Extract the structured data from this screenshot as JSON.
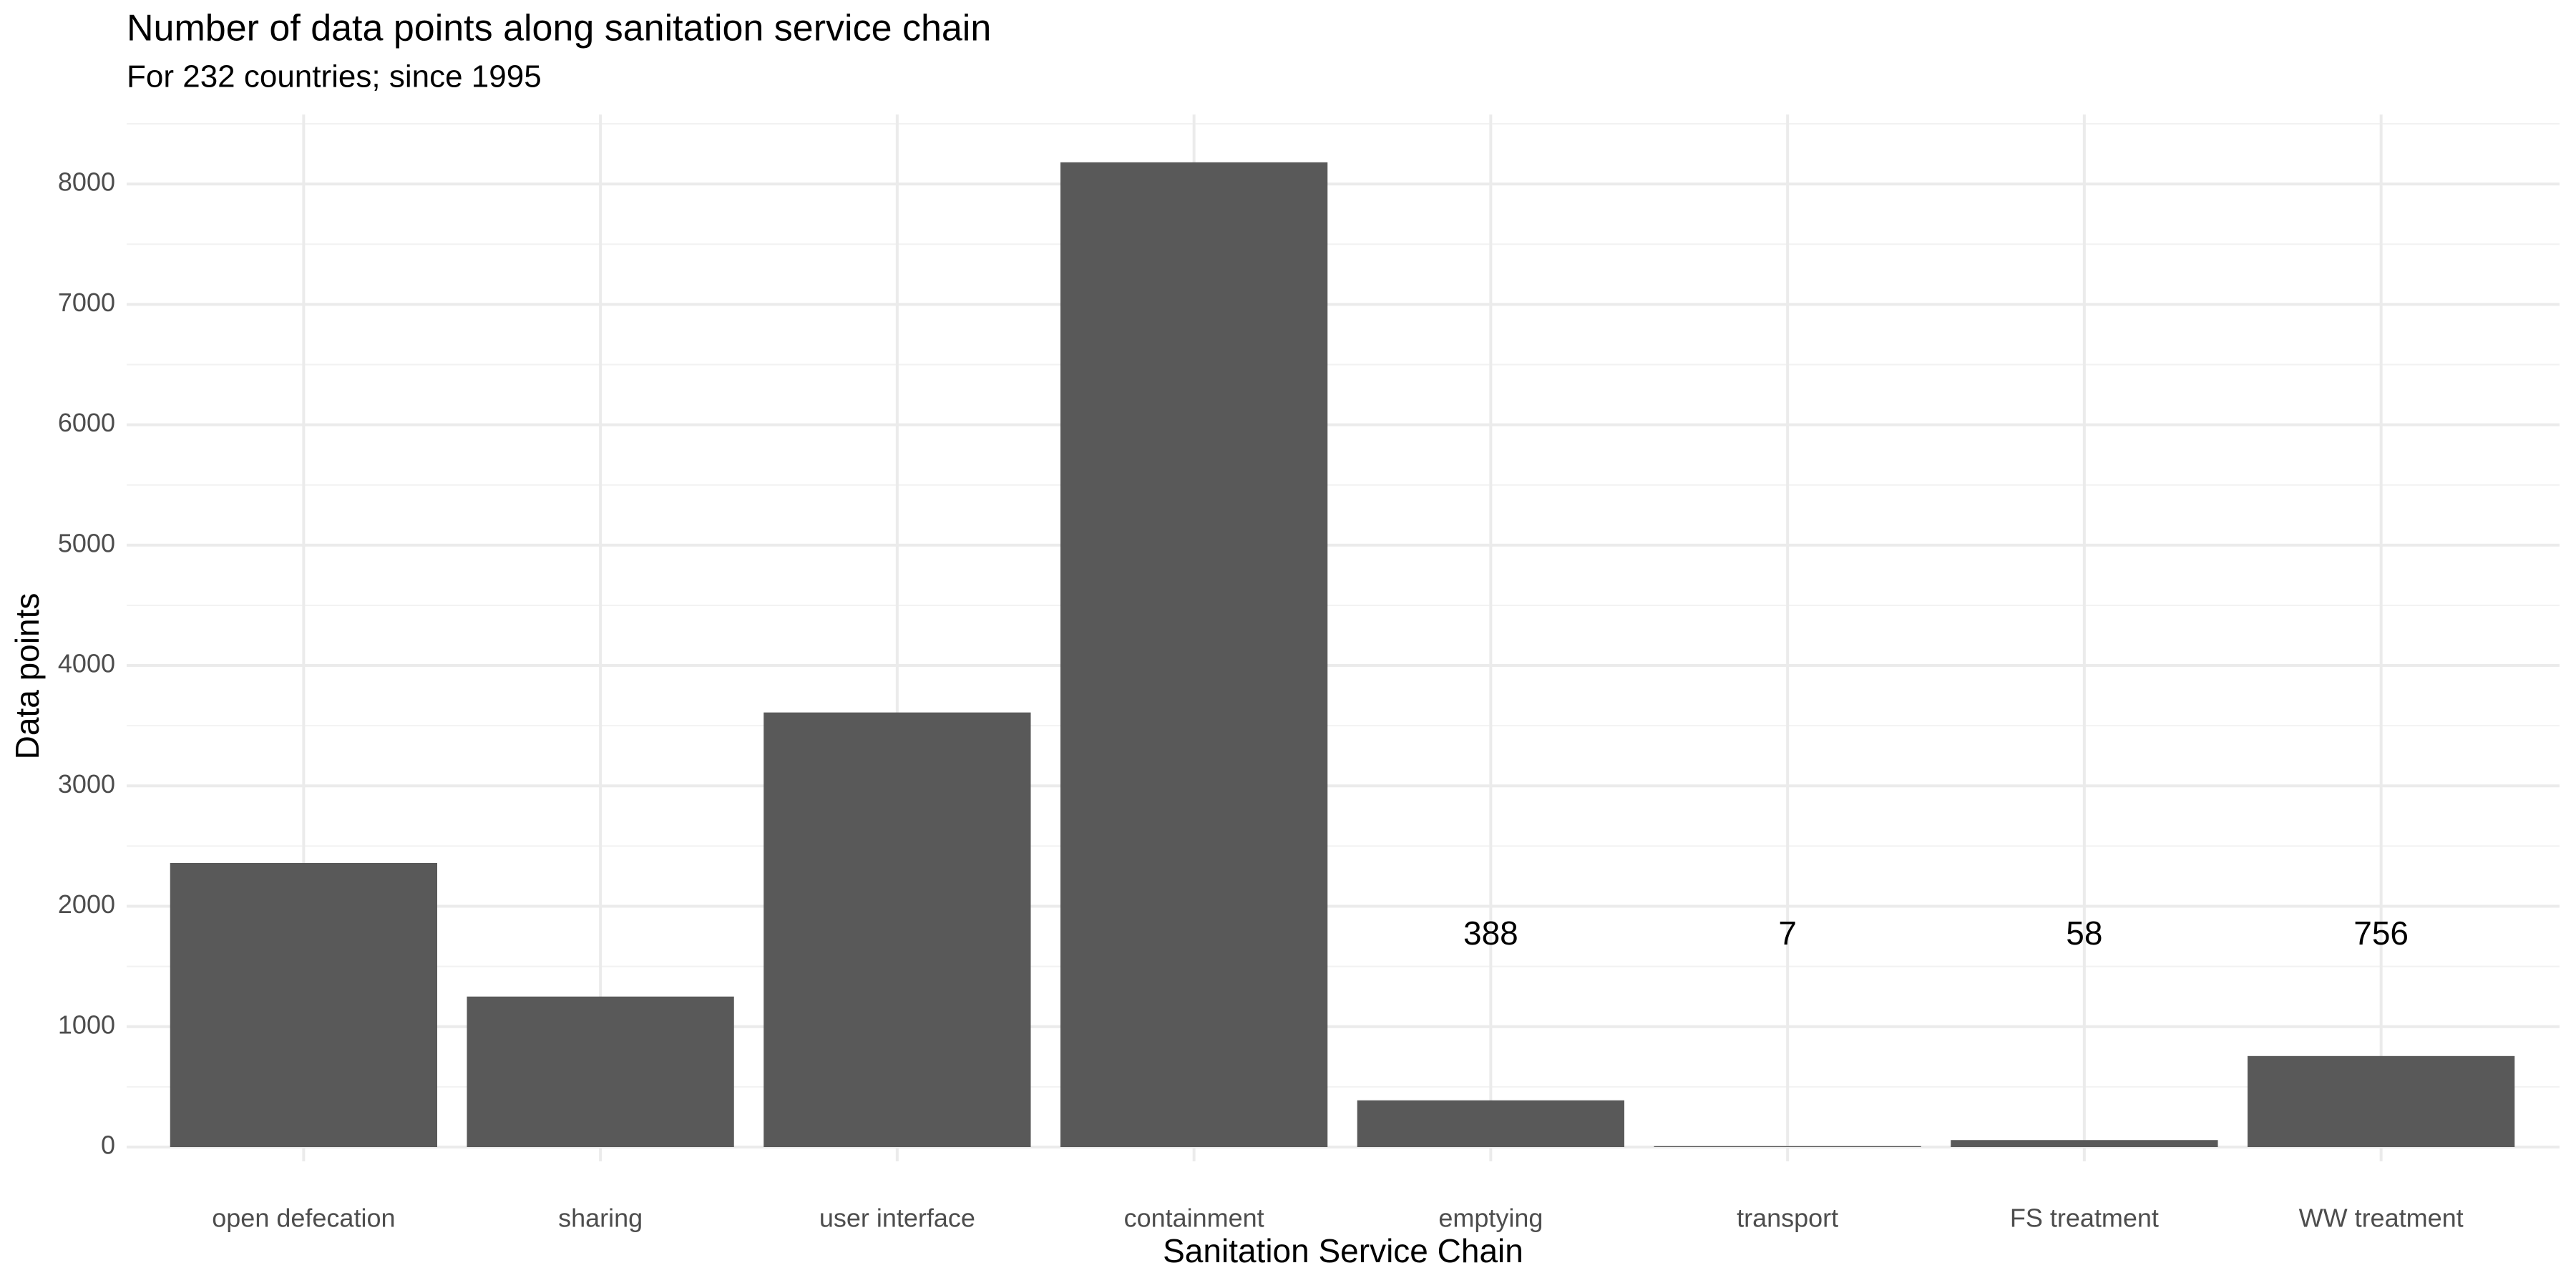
{
  "chart_data": {
    "type": "bar",
    "title": "Number of data points along sanitation service chain",
    "subtitle": "For 232 countries; since 1995",
    "x_label": "Sanitation Service Chain",
    "y_label": "Data points",
    "categories": [
      "open defecation",
      "sharing",
      "user interface",
      "containment",
      "emptying",
      "transport",
      "FS treatment",
      "WW treatment"
    ],
    "values": [
      2360,
      1250,
      3610,
      8180,
      388,
      7,
      58,
      756
    ],
    "value_labels": [
      null,
      null,
      null,
      null,
      "388",
      "7",
      "58",
      "756"
    ],
    "color": "#595959",
    "ylim": [
      0,
      8500
    ],
    "yticks": [
      0,
      1000,
      2000,
      3000,
      4000,
      5000,
      6000,
      7000,
      8000
    ],
    "grid": true
  }
}
